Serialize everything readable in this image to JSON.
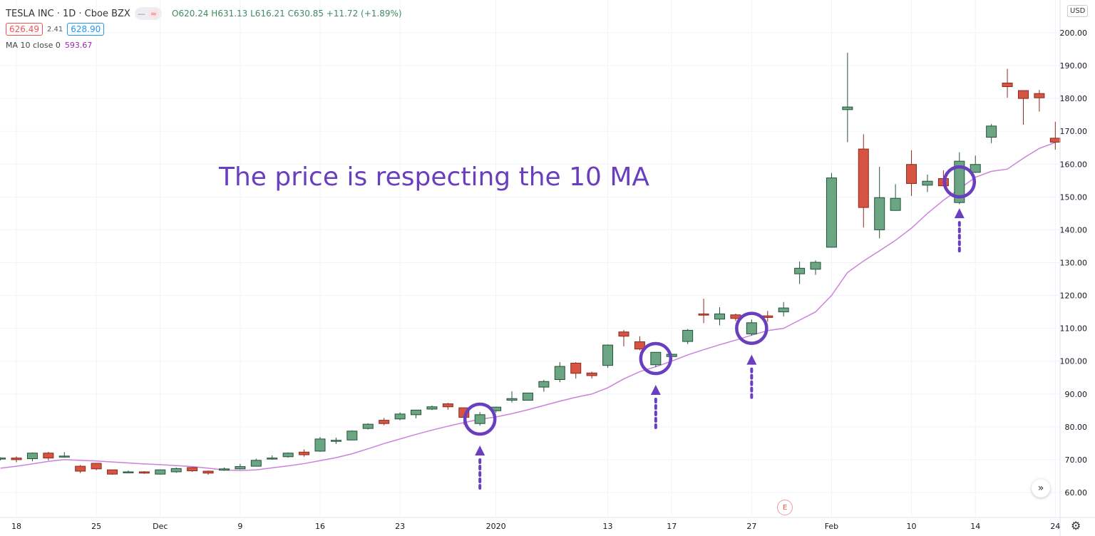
{
  "header": {
    "symbol_title": "TESLA INC · 1D · Cboe BZX",
    "toggle_icons": [
      "minus-icon",
      "approx-icon"
    ],
    "ohlc": "O620.24 H631.13 L616.21 C630.85 +11.72 (+1.89%)",
    "bid": "626.49",
    "spread": "2.41",
    "ask": "628.90",
    "indicator_label": "MA 10 close 0",
    "indicator_value": "593.67"
  },
  "currency": "USD",
  "annotation": {
    "text": "The price is respecting the 10 MA",
    "color": "#6a3fbf",
    "circled_dates": [
      "2019-12-31",
      "2020-01-16",
      "2020-01-27",
      "2020-02-13"
    ]
  },
  "earnings_marker": "E",
  "controls": {
    "scroll_icon": "double-chevron-right-icon",
    "settings_icon": "gear-icon"
  },
  "chart_data": {
    "type": "candlestick",
    "title": "",
    "ylim": [
      52,
      210
    ],
    "yticks": [
      "200.00",
      "190.00",
      "180.00",
      "170.00",
      "160.00",
      "150.00",
      "140.00",
      "130.00",
      "120.00",
      "110.00",
      "100.00",
      "90.00",
      "80.00",
      "70.00",
      "60.00"
    ],
    "xticks": [
      {
        "label": "18",
        "date": "2019-11-18"
      },
      {
        "label": "25",
        "date": "2019-11-25"
      },
      {
        "label": "Dec",
        "date": "2019-12-02"
      },
      {
        "label": "9",
        "date": "2019-12-09"
      },
      {
        "label": "16",
        "date": "2019-12-16"
      },
      {
        "label": "23",
        "date": "2019-12-23"
      },
      {
        "label": "2020",
        "date": "2020-01-02"
      },
      {
        "label": "13",
        "date": "2020-01-13"
      },
      {
        "label": "17",
        "date": "2020-01-17"
      },
      {
        "label": "27",
        "date": "2020-01-27"
      },
      {
        "label": "Feb",
        "date": "2020-02-03"
      },
      {
        "label": "10",
        "date": "2020-02-10"
      },
      {
        "label": "14",
        "date": "2020-02-14"
      },
      {
        "label": "24",
        "date": "2020-02-24"
      }
    ],
    "grid": true,
    "colors": {
      "up": "#6ba583",
      "up_border": "#225437",
      "down": "#d75442",
      "down_border": "#8b2a1f",
      "ma": "#cc82dd"
    },
    "candles": [
      [
        "2019-11-15",
        70.2,
        70.7,
        69.8,
        70.5
      ],
      [
        "2019-11-18",
        70.5,
        71.0,
        69.2,
        70.0
      ],
      [
        "2019-11-19",
        70.3,
        72.2,
        69.5,
        72.0
      ],
      [
        "2019-11-20",
        72.0,
        72.4,
        69.8,
        70.5
      ],
      [
        "2019-11-21",
        70.8,
        72.3,
        70.6,
        71.1
      ],
      [
        "2019-11-22",
        68.0,
        68.4,
        65.9,
        66.5
      ],
      [
        "2019-11-25",
        68.9,
        69.0,
        66.8,
        67.2
      ],
      [
        "2019-11-26",
        66.9,
        67.0,
        65.4,
        65.6
      ],
      [
        "2019-11-27",
        66.2,
        66.7,
        65.9,
        66.3
      ],
      [
        "2019-11-29",
        66.3,
        66.5,
        65.7,
        65.9
      ],
      [
        "2019-12-02",
        65.6,
        67.0,
        65.5,
        66.9
      ],
      [
        "2019-12-03",
        66.3,
        67.6,
        66.0,
        67.3
      ],
      [
        "2019-12-04",
        67.6,
        67.7,
        66.3,
        66.6
      ],
      [
        "2019-12-05",
        66.5,
        66.7,
        65.4,
        65.9
      ],
      [
        "2019-12-06",
        66.8,
        67.6,
        66.6,
        67.2
      ],
      [
        "2019-12-09",
        67.2,
        68.7,
        67.0,
        67.9
      ],
      [
        "2019-12-10",
        68.0,
        70.3,
        67.9,
        69.8
      ],
      [
        "2019-12-11",
        70.3,
        71.3,
        70.0,
        70.5
      ],
      [
        "2019-12-12",
        70.9,
        72.2,
        70.6,
        72.0
      ],
      [
        "2019-12-13",
        72.3,
        73.1,
        70.9,
        71.5
      ],
      [
        "2019-12-16",
        72.6,
        76.9,
        72.4,
        76.3
      ],
      [
        "2019-12-17",
        75.7,
        76.7,
        74.8,
        75.9
      ],
      [
        "2019-12-18",
        76.0,
        78.9,
        75.9,
        78.7
      ],
      [
        "2019-12-19",
        79.5,
        81.1,
        79.2,
        80.8
      ],
      [
        "2019-12-20",
        82.0,
        82.7,
        80.5,
        81.0
      ],
      [
        "2019-12-23",
        82.4,
        84.4,
        82.0,
        83.9
      ],
      [
        "2019-12-24",
        83.7,
        85.2,
        82.6,
        85.1
      ],
      [
        "2019-12-26",
        85.4,
        86.5,
        85.1,
        86.1
      ],
      [
        "2019-12-27",
        87.0,
        87.3,
        85.2,
        86.1
      ],
      [
        "2019-12-30",
        85.8,
        85.9,
        80.7,
        82.9
      ],
      [
        "2019-12-31",
        81.0,
        84.5,
        80.4,
        83.7
      ],
      [
        "2020-01-02",
        84.9,
        86.1,
        84.3,
        86.0
      ],
      [
        "2020-01-03",
        88.1,
        90.8,
        87.4,
        88.6
      ],
      [
        "2020-01-06",
        88.1,
        90.4,
        88.0,
        90.3
      ],
      [
        "2020-01-07",
        92.1,
        94.3,
        90.7,
        93.8
      ],
      [
        "2020-01-08",
        94.4,
        99.7,
        93.6,
        98.4
      ],
      [
        "2020-01-09",
        99.4,
        99.7,
        94.7,
        96.3
      ],
      [
        "2020-01-10",
        96.4,
        96.8,
        94.7,
        95.6
      ],
      [
        "2020-01-13",
        98.7,
        105.1,
        98.0,
        104.9
      ],
      [
        "2020-01-14",
        108.9,
        109.5,
        104.5,
        107.6
      ],
      [
        "2020-01-15",
        105.9,
        107.6,
        103.3,
        103.7
      ],
      [
        "2020-01-16",
        98.9,
        102.7,
        98.2,
        102.7
      ],
      [
        "2020-01-17",
        101.4,
        102.3,
        100.6,
        102.1
      ],
      [
        "2020-01-21",
        106.0,
        109.8,
        105.2,
        109.4
      ],
      [
        "2020-01-22",
        114.4,
        119.0,
        111.6,
        114.0
      ],
      [
        "2020-01-23",
        112.8,
        116.4,
        110.9,
        114.4
      ],
      [
        "2020-01-24",
        114.1,
        114.5,
        112.2,
        113.0
      ],
      [
        "2020-01-27",
        108.3,
        112.7,
        107.8,
        111.7
      ],
      [
        "2020-01-28",
        113.8,
        115.3,
        112.0,
        113.3
      ],
      [
        "2020-01-29",
        115.0,
        118.0,
        113.6,
        116.2
      ],
      [
        "2020-01-30",
        126.6,
        130.3,
        123.5,
        128.3
      ],
      [
        "2020-01-31",
        128.0,
        130.7,
        126.3,
        130.1
      ],
      [
        "2020-02-03",
        134.7,
        157.3,
        134.6,
        155.8
      ],
      [
        "2020-02-04",
        176.6,
        193.9,
        166.7,
        177.4
      ],
      [
        "2020-02-05",
        164.6,
        169.1,
        140.7,
        146.8
      ],
      [
        "2020-02-06",
        140.0,
        159.2,
        137.4,
        149.8
      ],
      [
        "2020-02-07",
        145.9,
        153.9,
        145.8,
        149.6
      ],
      [
        "2020-02-10",
        159.9,
        164.2,
        150.3,
        154.1
      ],
      [
        "2020-02-11",
        153.6,
        156.8,
        151.5,
        154.8
      ],
      [
        "2020-02-12",
        155.6,
        158.1,
        153.2,
        153.4
      ],
      [
        "2020-02-13",
        148.3,
        163.6,
        147.8,
        160.9
      ],
      [
        "2020-02-14",
        157.5,
        162.6,
        157.3,
        159.9
      ],
      [
        "2020-02-18",
        168.2,
        172.2,
        166.4,
        171.6
      ],
      [
        "2020-02-19",
        184.7,
        189.0,
        180.2,
        183.6
      ],
      [
        "2020-02-20",
        182.4,
        182.4,
        172.0,
        180.0
      ],
      [
        "2020-02-21",
        181.5,
        182.6,
        176.0,
        180.2
      ],
      [
        "2020-02-24",
        167.9,
        172.9,
        164.4,
        166.7
      ]
    ],
    "candle_fields": [
      "date",
      "open",
      "high",
      "low",
      "close"
    ],
    "ma10": [
      67.4,
      68.0,
      68.7,
      69.5,
      70.0,
      69.8,
      69.6,
      69.3,
      69.0,
      68.7,
      68.5,
      68.2,
      67.9,
      67.4,
      66.9,
      66.7,
      66.9,
      67.5,
      68.1,
      68.8,
      69.7,
      70.6,
      71.8,
      73.3,
      74.9,
      76.3,
      77.7,
      79.0,
      80.2,
      81.3,
      82.3,
      83.0,
      84.0,
      85.2,
      86.5,
      87.8,
      89.0,
      90.0,
      91.9,
      94.6,
      96.8,
      98.3,
      100.0,
      101.9,
      103.5,
      105.0,
      106.4,
      107.9,
      109.3,
      110.0,
      112.5,
      115.0,
      120.0,
      127.0,
      130.5,
      133.6,
      136.8,
      140.5,
      145.0,
      149.0,
      152.5,
      156.0,
      157.8,
      158.5,
      161.8,
      164.8,
      166.6
    ]
  }
}
